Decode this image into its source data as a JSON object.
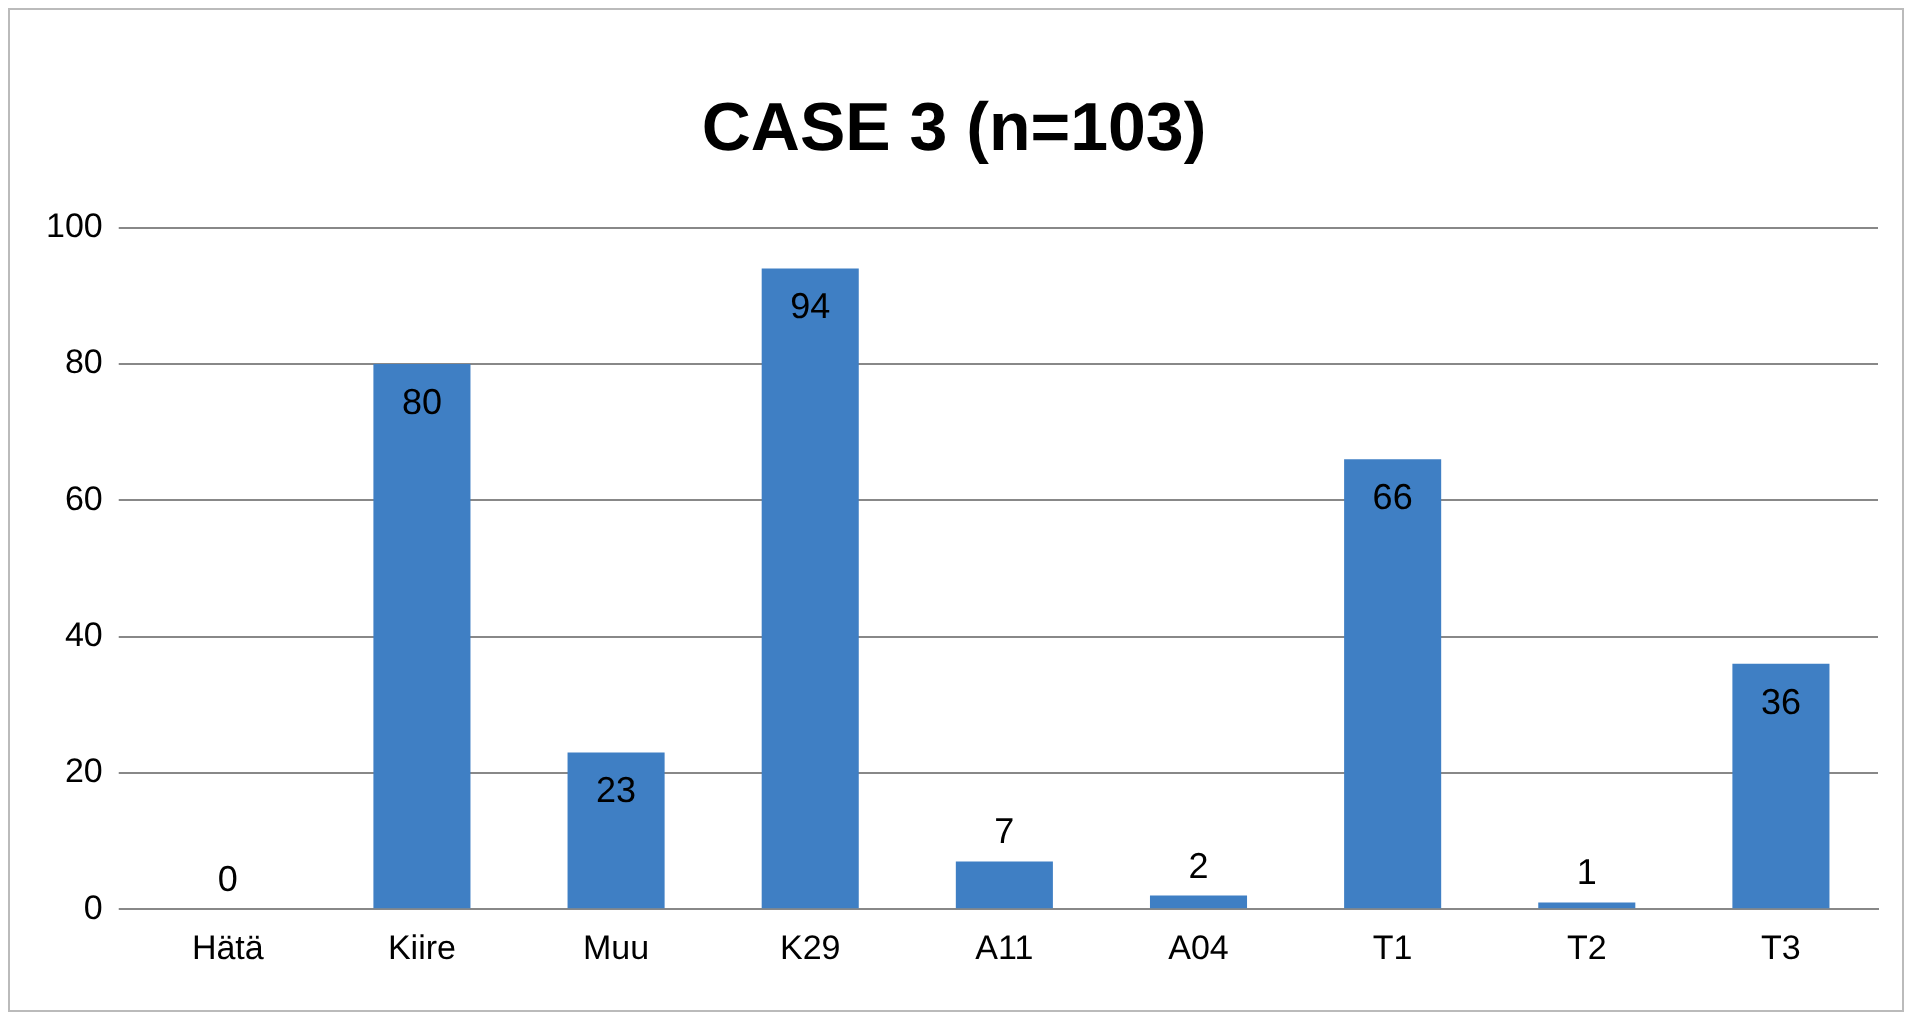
{
  "chart_data": {
    "type": "bar",
    "title": "CASE 3 (n=103)",
    "categories": [
      "Hätä",
      "Kiire",
      "Muu",
      "K29",
      "A11",
      "A04",
      "T1",
      "T2",
      "T3"
    ],
    "values": [
      0,
      80,
      23,
      94,
      7,
      2,
      66,
      1,
      36
    ],
    "color": "#3f7fc4",
    "ylim": [
      0,
      100
    ],
    "yticks": [
      0,
      20,
      40,
      60,
      80,
      100
    ],
    "grid": "y",
    "data_labels": true,
    "legend": false
  }
}
